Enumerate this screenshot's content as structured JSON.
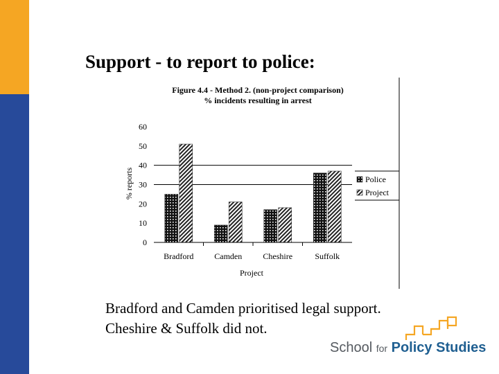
{
  "slide": {
    "title": "Support - to report to police:",
    "caption_lines": [
      "Bradford and Camden prioritised legal support.",
      "Cheshire & Suffolk did not."
    ],
    "accent_colors": {
      "orange": "#f5a623",
      "blue": "#274a9a"
    }
  },
  "logo": {
    "word1": "School",
    "word2": "for",
    "word3": "Policy Studies",
    "colors": {
      "text": "#555a60",
      "strong": "#1f5f91",
      "squares": "#f5a623"
    }
  },
  "chart_data": {
    "type": "bar",
    "title": "Figure 4.4 - Method 2. (non-project comparison)",
    "subtitle": "% incidents resulting in arrest",
    "categories": [
      "Bradford",
      "Camden",
      "Cheshire",
      "Suffolk"
    ],
    "series": [
      {
        "name": "Police",
        "values": [
          25,
          9,
          17,
          36
        ],
        "pattern": "dotted-dark"
      },
      {
        "name": "Project",
        "values": [
          51,
          21,
          18,
          37
        ],
        "pattern": "diagonal-hatch"
      }
    ],
    "xlabel": "Project",
    "ylabel": "% reports",
    "ylim": [
      0,
      60
    ],
    "yticks": [
      "0",
      "10",
      "20",
      "30",
      "40",
      "50",
      "60"
    ],
    "gridlines": [
      30,
      40
    ],
    "legend_position": "right"
  }
}
